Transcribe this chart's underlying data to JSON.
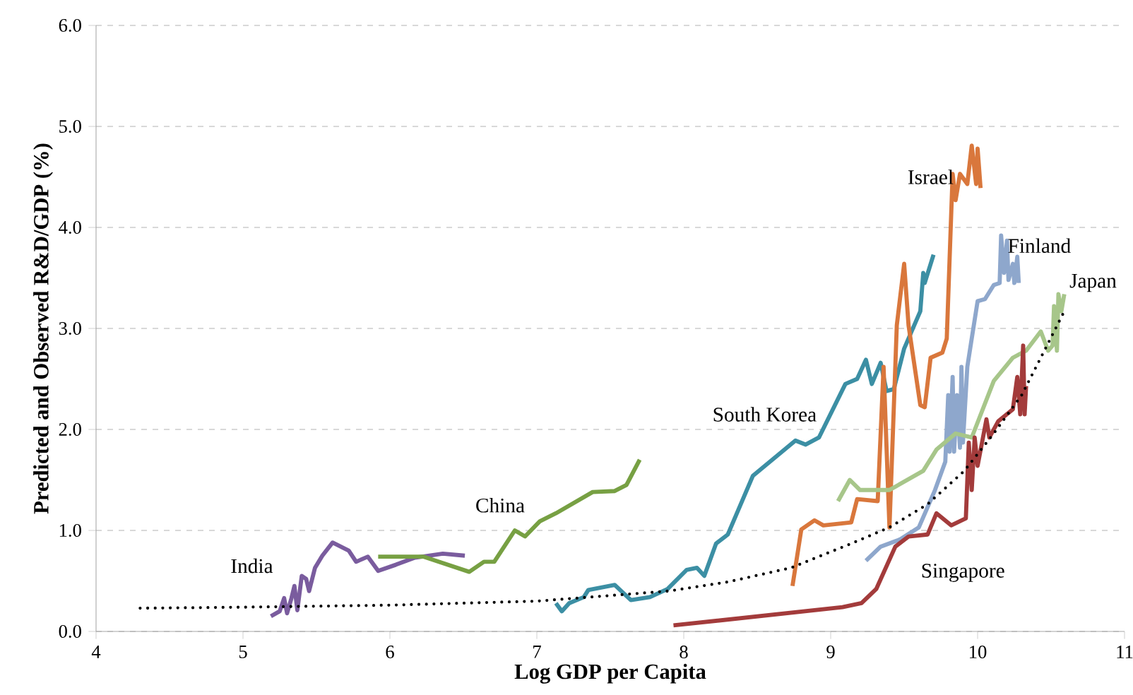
{
  "chart_data": {
    "type": "line",
    "xlabel": "Log GDP per Capita",
    "ylabel": "Predicted and Observed R&D/GDP (%)",
    "xlim": [
      4,
      11
    ],
    "ylim": [
      0,
      6
    ],
    "xticks": [
      4,
      5,
      6,
      7,
      8,
      9,
      10,
      11
    ],
    "yticks": [
      {
        "value": 0,
        "label": "0.0"
      },
      {
        "value": 1,
        "label": "1.0"
      },
      {
        "value": 2,
        "label": "2.0"
      },
      {
        "value": 3,
        "label": "3.0"
      },
      {
        "value": 4,
        "label": "4.0"
      },
      {
        "value": 5,
        "label": "5.0"
      },
      {
        "value": 6,
        "label": "6.0"
      }
    ],
    "grid": "y",
    "legend": false,
    "marker": "none",
    "series": [
      {
        "name": "India",
        "color": "#7a5c9e",
        "line_style": "solid",
        "x": [
          5.19,
          5.25,
          5.28,
          5.3,
          5.33,
          5.35,
          5.37,
          5.4,
          5.43,
          5.45,
          5.49,
          5.54,
          5.61,
          5.72,
          5.77,
          5.85,
          5.92,
          6.04,
          6.17,
          6.36,
          6.51
        ],
        "values": [
          0.15,
          0.2,
          0.33,
          0.18,
          0.33,
          0.45,
          0.21,
          0.55,
          0.52,
          0.4,
          0.63,
          0.75,
          0.88,
          0.8,
          0.69,
          0.74,
          0.6,
          0.66,
          0.73,
          0.77,
          0.75
        ]
      },
      {
        "name": "China",
        "color": "#77a043",
        "line_style": "solid",
        "x": [
          5.92,
          6.23,
          6.54,
          6.64,
          6.71,
          6.85,
          6.92,
          7.02,
          7.13,
          7.38,
          7.53,
          7.61,
          7.7
        ],
        "values": [
          0.74,
          0.74,
          0.59,
          0.69,
          0.69,
          1.0,
          0.94,
          1.09,
          1.17,
          1.38,
          1.39,
          1.45,
          1.7
        ]
      },
      {
        "name": "South Korea",
        "color": "#3c8fa4",
        "line_style": "solid",
        "x": [
          7.13,
          7.17,
          7.22,
          7.32,
          7.35,
          7.53,
          7.64,
          7.77,
          7.89,
          8.02,
          8.09,
          8.14,
          8.22,
          8.3,
          8.47,
          8.76,
          8.83,
          8.92,
          9.1,
          9.18,
          9.24,
          9.28,
          9.34,
          9.38,
          9.43,
          9.5,
          9.61,
          9.63,
          9.64,
          9.7
        ],
        "values": [
          0.28,
          0.2,
          0.28,
          0.34,
          0.41,
          0.46,
          0.31,
          0.34,
          0.42,
          0.61,
          0.63,
          0.55,
          0.87,
          0.96,
          1.54,
          1.89,
          1.85,
          1.92,
          2.45,
          2.5,
          2.69,
          2.45,
          2.66,
          2.38,
          2.4,
          2.8,
          3.17,
          3.55,
          3.45,
          3.73
        ]
      },
      {
        "name": "Israel",
        "color": "#d9773c",
        "line_style": "solid",
        "x": [
          8.74,
          8.8,
          8.89,
          8.95,
          9.14,
          9.18,
          9.32,
          9.36,
          9.4,
          9.45,
          9.5,
          9.53,
          9.61,
          9.64,
          9.68,
          9.76,
          9.79,
          9.83,
          9.85,
          9.88,
          9.93,
          9.96,
          9.99,
          10.0,
          10.02
        ],
        "values": [
          0.45,
          1.01,
          1.1,
          1.05,
          1.08,
          1.31,
          1.29,
          2.62,
          1.03,
          3.03,
          3.64,
          3.03,
          2.24,
          2.22,
          2.71,
          2.76,
          2.9,
          4.53,
          4.27,
          4.53,
          4.43,
          4.81,
          4.43,
          4.78,
          4.39
        ]
      },
      {
        "name": "Finland",
        "color": "#8ea7cc",
        "line_style": "solid",
        "x": [
          9.24,
          9.34,
          9.47,
          9.6,
          9.71,
          9.78,
          9.8,
          9.81,
          9.83,
          9.84,
          9.86,
          9.88,
          9.89,
          9.9,
          9.93,
          9.96,
          10.0,
          10.05,
          10.11,
          10.15,
          10.16,
          10.18,
          10.2,
          10.21,
          10.24,
          10.25,
          10.27,
          10.28
        ],
        "values": [
          0.7,
          0.84,
          0.91,
          1.03,
          1.4,
          1.68,
          2.34,
          1.78,
          2.52,
          1.78,
          2.34,
          1.82,
          2.62,
          1.87,
          2.62,
          2.9,
          3.27,
          3.29,
          3.43,
          3.45,
          3.92,
          3.55,
          3.87,
          3.48,
          3.64,
          3.45,
          3.71,
          3.45
        ]
      },
      {
        "name": "Japan",
        "color": "#a7c68a",
        "line_style": "solid",
        "x": [
          9.05,
          9.13,
          9.2,
          9.4,
          9.63,
          9.72,
          9.85,
          9.96,
          10.11,
          10.24,
          10.33,
          10.43,
          10.48,
          10.51,
          10.52,
          10.54,
          10.55,
          10.57,
          10.59
        ],
        "values": [
          1.29,
          1.5,
          1.4,
          1.4,
          1.59,
          1.8,
          1.96,
          1.92,
          2.48,
          2.71,
          2.78,
          2.97,
          2.78,
          2.83,
          3.22,
          2.78,
          3.34,
          3.17,
          3.34
        ]
      },
      {
        "name": "Singapore",
        "color": "#a33b3b",
        "line_style": "solid",
        "x": [
          7.93,
          9.08,
          9.21,
          9.31,
          9.44,
          9.53,
          9.66,
          9.72,
          9.82,
          9.92,
          9.94,
          9.96,
          9.98,
          10.0,
          10.06,
          10.08,
          10.14,
          10.24,
          10.27,
          10.29,
          10.31,
          10.32,
          10.33
        ],
        "values": [
          0.06,
          0.24,
          0.28,
          0.42,
          0.84,
          0.94,
          0.96,
          1.17,
          1.05,
          1.12,
          1.87,
          1.4,
          1.92,
          1.64,
          2.1,
          1.92,
          2.08,
          2.2,
          2.52,
          2.15,
          2.83,
          2.15,
          2.43
        ]
      },
      {
        "color": "#000000",
        "line_style": "dotted",
        "x": [
          4.3,
          5.0,
          6.0,
          7.0,
          7.9,
          8.3,
          8.73,
          9.14,
          9.4,
          9.66,
          9.91,
          10.11,
          10.3,
          10.43,
          10.59
        ],
        "values": [
          0.23,
          0.24,
          0.26,
          0.3,
          0.4,
          0.49,
          0.63,
          0.87,
          1.03,
          1.26,
          1.59,
          1.96,
          2.34,
          2.71,
          3.17
        ]
      }
    ]
  }
}
